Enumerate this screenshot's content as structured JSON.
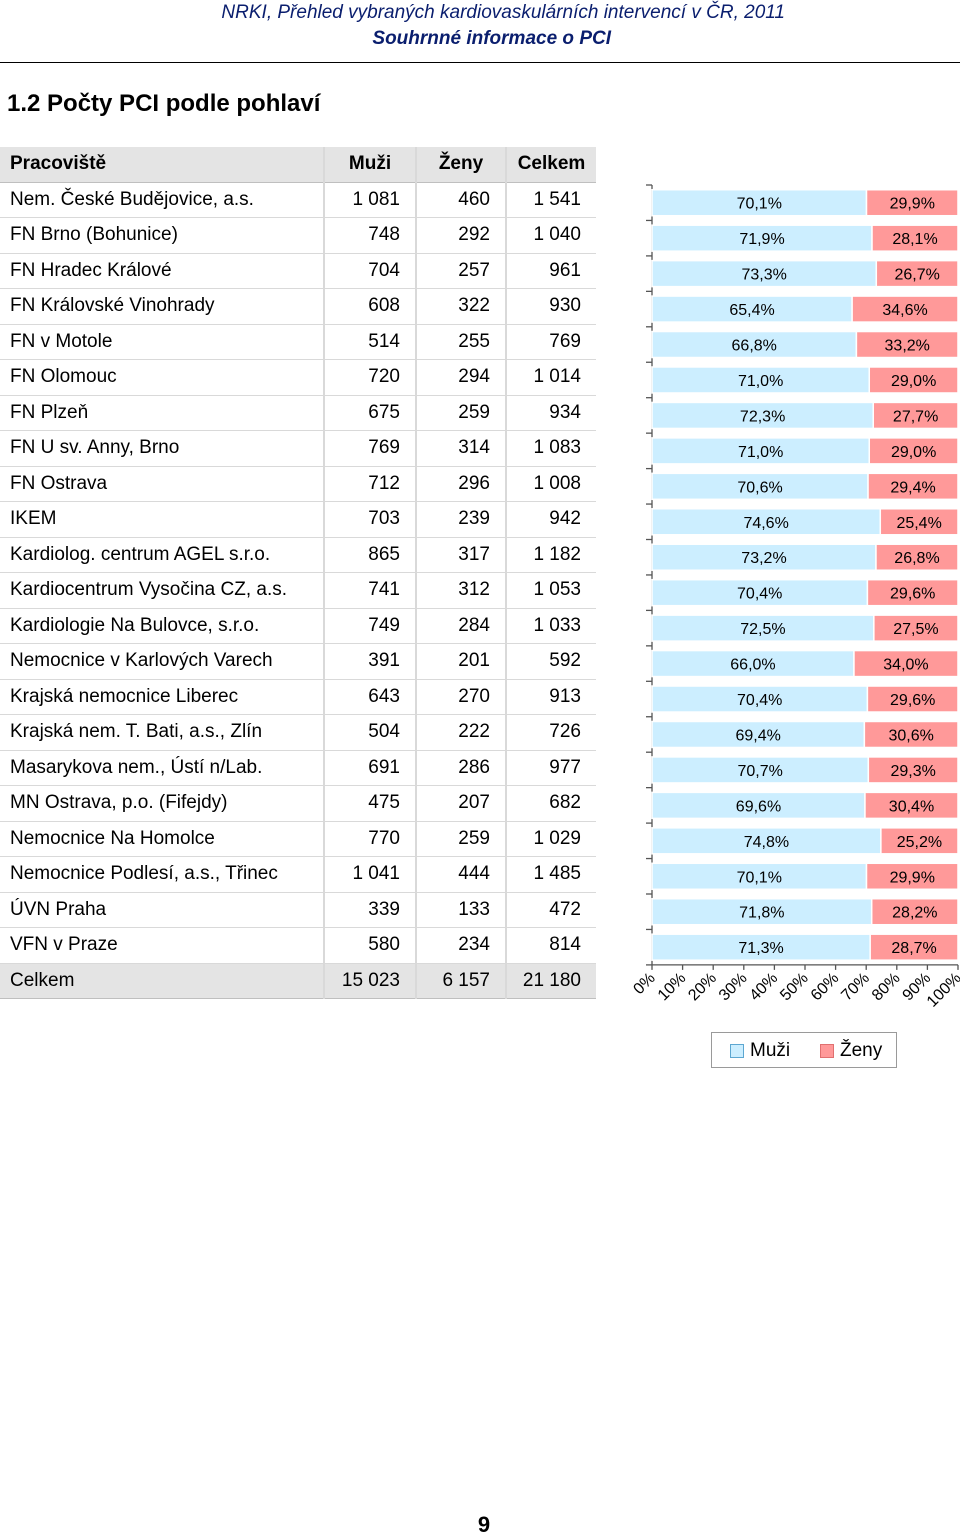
{
  "header": {
    "line1": "NRKI, Přehled vybraných kardiovaskulárních intervencí v ČR, 2011",
    "line2": "Souhrnné informace o PCI"
  },
  "section_title": "1.2  Počty PCI podle pohlaví",
  "table": {
    "columns": [
      "Pracoviště",
      "Muži",
      "Ženy",
      "Celkem"
    ],
    "rows": [
      {
        "name": "Nem. České Budějovice, a.s.",
        "muzi": "1 081",
        "zeny": "460",
        "celkem": "1 541"
      },
      {
        "name": "FN Brno (Bohunice)",
        "muzi": "748",
        "zeny": "292",
        "celkem": "1 040"
      },
      {
        "name": "FN Hradec Králové",
        "muzi": "704",
        "zeny": "257",
        "celkem": "961"
      },
      {
        "name": "FN Královské Vinohrady",
        "muzi": "608",
        "zeny": "322",
        "celkem": "930"
      },
      {
        "name": "FN v Motole",
        "muzi": "514",
        "zeny": "255",
        "celkem": "769"
      },
      {
        "name": "FN Olomouc",
        "muzi": "720",
        "zeny": "294",
        "celkem": "1 014"
      },
      {
        "name": "FN Plzeň",
        "muzi": "675",
        "zeny": "259",
        "celkem": "934"
      },
      {
        "name": "FN U sv. Anny, Brno",
        "muzi": "769",
        "zeny": "314",
        "celkem": "1 083"
      },
      {
        "name": "FN Ostrava",
        "muzi": "712",
        "zeny": "296",
        "celkem": "1 008"
      },
      {
        "name": "IKEM",
        "muzi": "703",
        "zeny": "239",
        "celkem": "942"
      },
      {
        "name": "Kardiolog. centrum AGEL s.r.o.",
        "muzi": "865",
        "zeny": "317",
        "celkem": "1 182"
      },
      {
        "name": "Kardiocentrum Vysočina CZ, a.s.",
        "muzi": "741",
        "zeny": "312",
        "celkem": "1 053"
      },
      {
        "name": "Kardiologie Na Bulovce, s.r.o.",
        "muzi": "749",
        "zeny": "284",
        "celkem": "1 033"
      },
      {
        "name": "Nemocnice v Karlových Varech",
        "muzi": "391",
        "zeny": "201",
        "celkem": "592"
      },
      {
        "name": "Krajská nemocnice Liberec",
        "muzi": "643",
        "zeny": "270",
        "celkem": "913"
      },
      {
        "name": "Krajská nem. T. Bati, a.s., Zlín",
        "muzi": "504",
        "zeny": "222",
        "celkem": "726"
      },
      {
        "name": "Masarykova nem., Ústí n/Lab.",
        "muzi": "691",
        "zeny": "286",
        "celkem": "977"
      },
      {
        "name": "MN Ostrava, p.o. (Fifejdy)",
        "muzi": "475",
        "zeny": "207",
        "celkem": "682"
      },
      {
        "name": "Nemocnice Na Homolce",
        "muzi": "770",
        "zeny": "259",
        "celkem": "1 029"
      },
      {
        "name": "Nemocnice Podlesí, a.s., Třinec",
        "muzi": "1 041",
        "zeny": "444",
        "celkem": "1 485"
      },
      {
        "name": "ÚVN Praha",
        "muzi": "339",
        "zeny": "133",
        "celkem": "472"
      },
      {
        "name": "VFN v Praze",
        "muzi": "580",
        "zeny": "234",
        "celkem": "814"
      }
    ],
    "total": {
      "name": "Celkem",
      "muzi": "15 023",
      "zeny": "6 157",
      "celkem": "21 180"
    }
  },
  "chart_data": {
    "type": "bar",
    "orientation": "horizontal",
    "stacking": "percent",
    "categories": [
      "Nem. České Budějovice, a.s.",
      "FN Brno (Bohunice)",
      "FN Hradec Králové",
      "FN Královské Vinohrady",
      "FN v Motole",
      "FN Olomouc",
      "FN Plzeň",
      "FN U sv. Anny, Brno",
      "FN Ostrava",
      "IKEM",
      "Kardiolog. centrum AGEL s.r.o.",
      "Kardiocentrum Vysočina CZ, a.s.",
      "Kardiologie Na Bulovce, s.r.o.",
      "Nemocnice v Karlových Varech",
      "Krajská nemocnice Liberec",
      "Krajská nem. T. Bati, a.s., Zlín",
      "Masarykova nem., Ústí n/Lab.",
      "MN Ostrava, p.o. (Fifejdy)",
      "Nemocnice Na Homolce",
      "Nemocnice Podlesí, a.s., Třinec",
      "ÚVN Praha",
      "VFN v Praze"
    ],
    "series": [
      {
        "name": "Muži",
        "color": "#cceeff",
        "values": [
          70.1,
          71.9,
          73.3,
          65.4,
          66.8,
          71.0,
          72.3,
          71.0,
          70.6,
          74.6,
          73.2,
          70.4,
          72.5,
          66.0,
          70.4,
          69.4,
          70.7,
          69.6,
          74.8,
          70.1,
          71.8,
          71.3
        ],
        "labels": [
          "70,1%",
          "71,9%",
          "73,3%",
          "65,4%",
          "66,8%",
          "71,0%",
          "72,3%",
          "71,0%",
          "70,6%",
          "74,6%",
          "73,2%",
          "70,4%",
          "72,5%",
          "66,0%",
          "70,4%",
          "69,4%",
          "70,7%",
          "69,6%",
          "74,8%",
          "70,1%",
          "71,8%",
          "71,3%"
        ]
      },
      {
        "name": "Ženy",
        "color": "#ff9999",
        "values": [
          29.9,
          28.1,
          26.7,
          34.6,
          33.2,
          29.0,
          27.7,
          29.0,
          29.4,
          25.4,
          26.8,
          29.6,
          27.5,
          34.0,
          29.6,
          30.6,
          29.3,
          30.4,
          25.2,
          29.9,
          28.2,
          28.7
        ],
        "labels": [
          "29,9%",
          "28,1%",
          "26,7%",
          "34,6%",
          "33,2%",
          "29,0%",
          "27,7%",
          "29,0%",
          "29,4%",
          "25,4%",
          "26,8%",
          "29,6%",
          "27,5%",
          "34,0%",
          "29,6%",
          "30,6%",
          "29,3%",
          "30,4%",
          "25,2%",
          "29,9%",
          "28,2%",
          "28,7%"
        ]
      }
    ],
    "x_ticks": [
      "0%",
      "10%",
      "20%",
      "30%",
      "40%",
      "50%",
      "60%",
      "70%",
      "80%",
      "90%",
      "100%"
    ],
    "xlim": [
      0,
      100
    ],
    "grid": false,
    "legend_position": "bottom"
  },
  "legend": {
    "muzi": "Muži",
    "zeny": "Ženy"
  },
  "page_number": "9"
}
